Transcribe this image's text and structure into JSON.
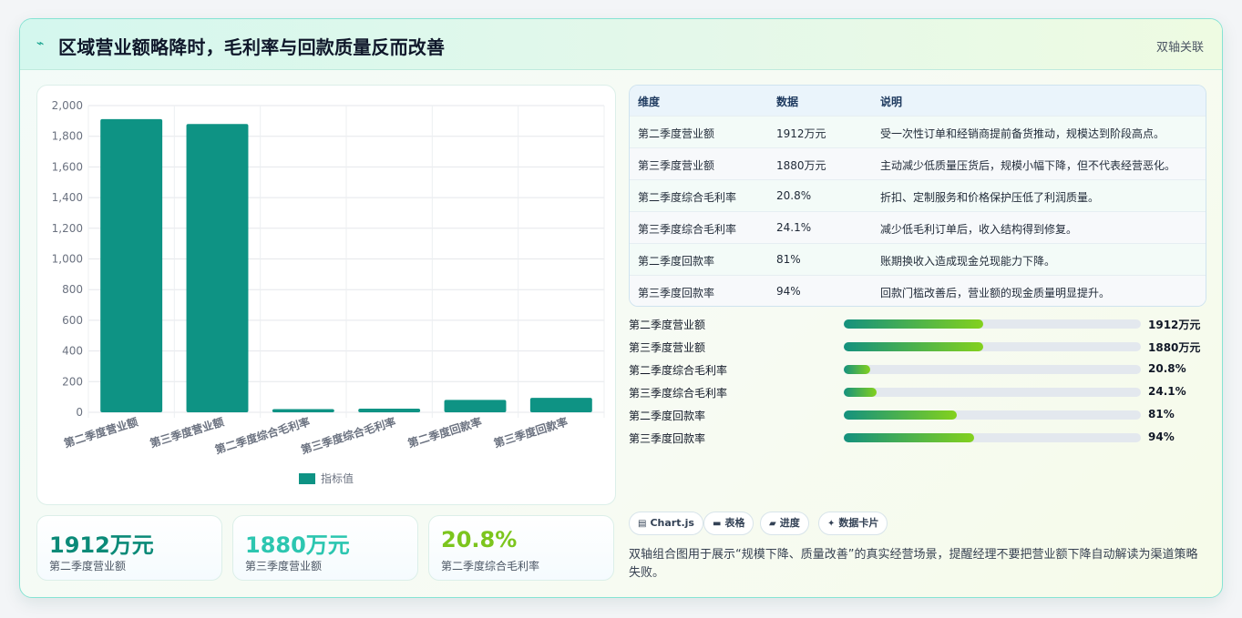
{
  "header": {
    "icon": "bolt-icon",
    "title": "区域营业额略降时，毛利率与回款质量反而改善",
    "tag": "双轴关联"
  },
  "chart_data": {
    "type": "bar",
    "categories": [
      "第二季度营业额",
      "第三季度营业额",
      "第二季度综合毛利率",
      "第三季度综合毛利率",
      "第二季度回款率",
      "第三季度回款率"
    ],
    "series": [
      {
        "name": "指标值",
        "values": [
          1912,
          1880,
          20.8,
          24.1,
          81,
          94
        ]
      }
    ],
    "ylim": [
      0,
      2000
    ],
    "yticks": [
      "0",
      "200",
      "400",
      "600",
      "800",
      "1,000",
      "1,200",
      "1,400",
      "1,600",
      "1,800",
      "2,000"
    ],
    "legend": "bottom",
    "grid": true,
    "color": "#0e9384"
  },
  "kpis": [
    {
      "value": "1912万元",
      "label": "第二季度营业额",
      "color": "#0b8a78"
    },
    {
      "value": "1880万元",
      "label": "第三季度营业额",
      "color": "#2cc6b0"
    },
    {
      "value": "20.8%",
      "label": "第二季度综合毛利率",
      "color": "#7cc51d"
    }
  ],
  "table": {
    "headers": [
      "维度",
      "数据",
      "说明"
    ],
    "rows": [
      [
        "第二季度营业额",
        "1912万元",
        "受一次性订单和经销商提前备货推动，规模达到阶段高点。"
      ],
      [
        "第三季度营业额",
        "1880万元",
        "主动减少低质量压货后，规模小幅下降，但不代表经营恶化。"
      ],
      [
        "第二季度综合毛利率",
        "20.8%",
        "折扣、定制服务和价格保护压低了利润质量。"
      ],
      [
        "第三季度综合毛利率",
        "24.1%",
        "减少低毛利订单后，收入结构得到修复。"
      ],
      [
        "第二季度回款率",
        "81%",
        "账期换收入造成现金兑现能力下降。"
      ],
      [
        "第三季度回款率",
        "94%",
        "回款门槛改善后，营业额的现金质量明显提升。"
      ]
    ]
  },
  "progress": [
    {
      "label": "第二季度营业额",
      "value": "1912万元",
      "fraction": 0.47
    },
    {
      "label": "第三季度营业额",
      "value": "1880万元",
      "fraction": 0.47
    },
    {
      "label": "第二季度综合毛利率",
      "value": "20.8%",
      "fraction": 0.09
    },
    {
      "label": "第三季度综合毛利率",
      "value": "24.1%",
      "fraction": 0.11
    },
    {
      "label": "第二季度回款率",
      "value": "81%",
      "fraction": 0.38
    },
    {
      "label": "第三季度回款率",
      "value": "94%",
      "fraction": 0.44
    }
  ],
  "chips": [
    {
      "icon": "chart-icon",
      "glyph": "▤",
      "label": "Chart.js"
    },
    {
      "icon": "table-icon",
      "glyph": "▬",
      "label": "表格"
    },
    {
      "icon": "progress-icon",
      "glyph": "▰",
      "label": "进度"
    },
    {
      "icon": "sparkle-icon",
      "glyph": "✦",
      "label": "数据卡片"
    }
  ],
  "note": "双轴组合图用于展示“规模下降、质量改善”的真实经营场景，提醒经理不要把营业额下降自动解读为渠道策略失败。"
}
